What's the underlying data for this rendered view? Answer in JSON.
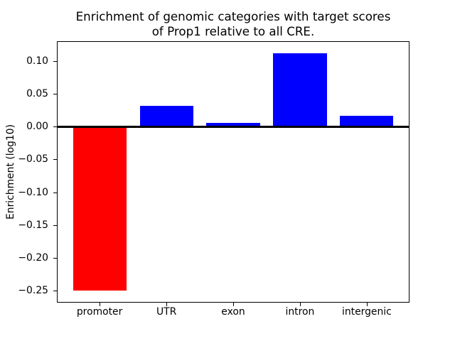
{
  "chart_data": {
    "type": "bar",
    "title": "Enrichment of genomic categories with target scores\nof Prop1 relative to all CRE.",
    "xlabel": "",
    "ylabel": "Enrichment (log10)",
    "categories": [
      "promoter",
      "UTR",
      "exon",
      "intron",
      "intergenic"
    ],
    "values": [
      -0.25,
      0.032,
      0.006,
      0.112,
      0.016
    ],
    "bar_colors": [
      "#ff0000",
      "#0000ff",
      "#0000ff",
      "#0000ff",
      "#0000ff"
    ],
    "yticks": [
      0.1,
      0.05,
      0.0,
      -0.05,
      -0.1,
      -0.15,
      -0.2,
      -0.25
    ],
    "ytick_labels": [
      "0.10",
      "0.05",
      "0.00",
      "−0.05",
      "−0.10",
      "−0.15",
      "−0.20",
      "−0.25"
    ],
    "ylim": [
      -0.268,
      0.13
    ],
    "xlim": [
      -0.64,
      4.64
    ],
    "bar_width": 0.8,
    "zero_line": true,
    "grid": false,
    "legend": null,
    "background_color": "#ffffff",
    "axis_color": "#000000"
  }
}
